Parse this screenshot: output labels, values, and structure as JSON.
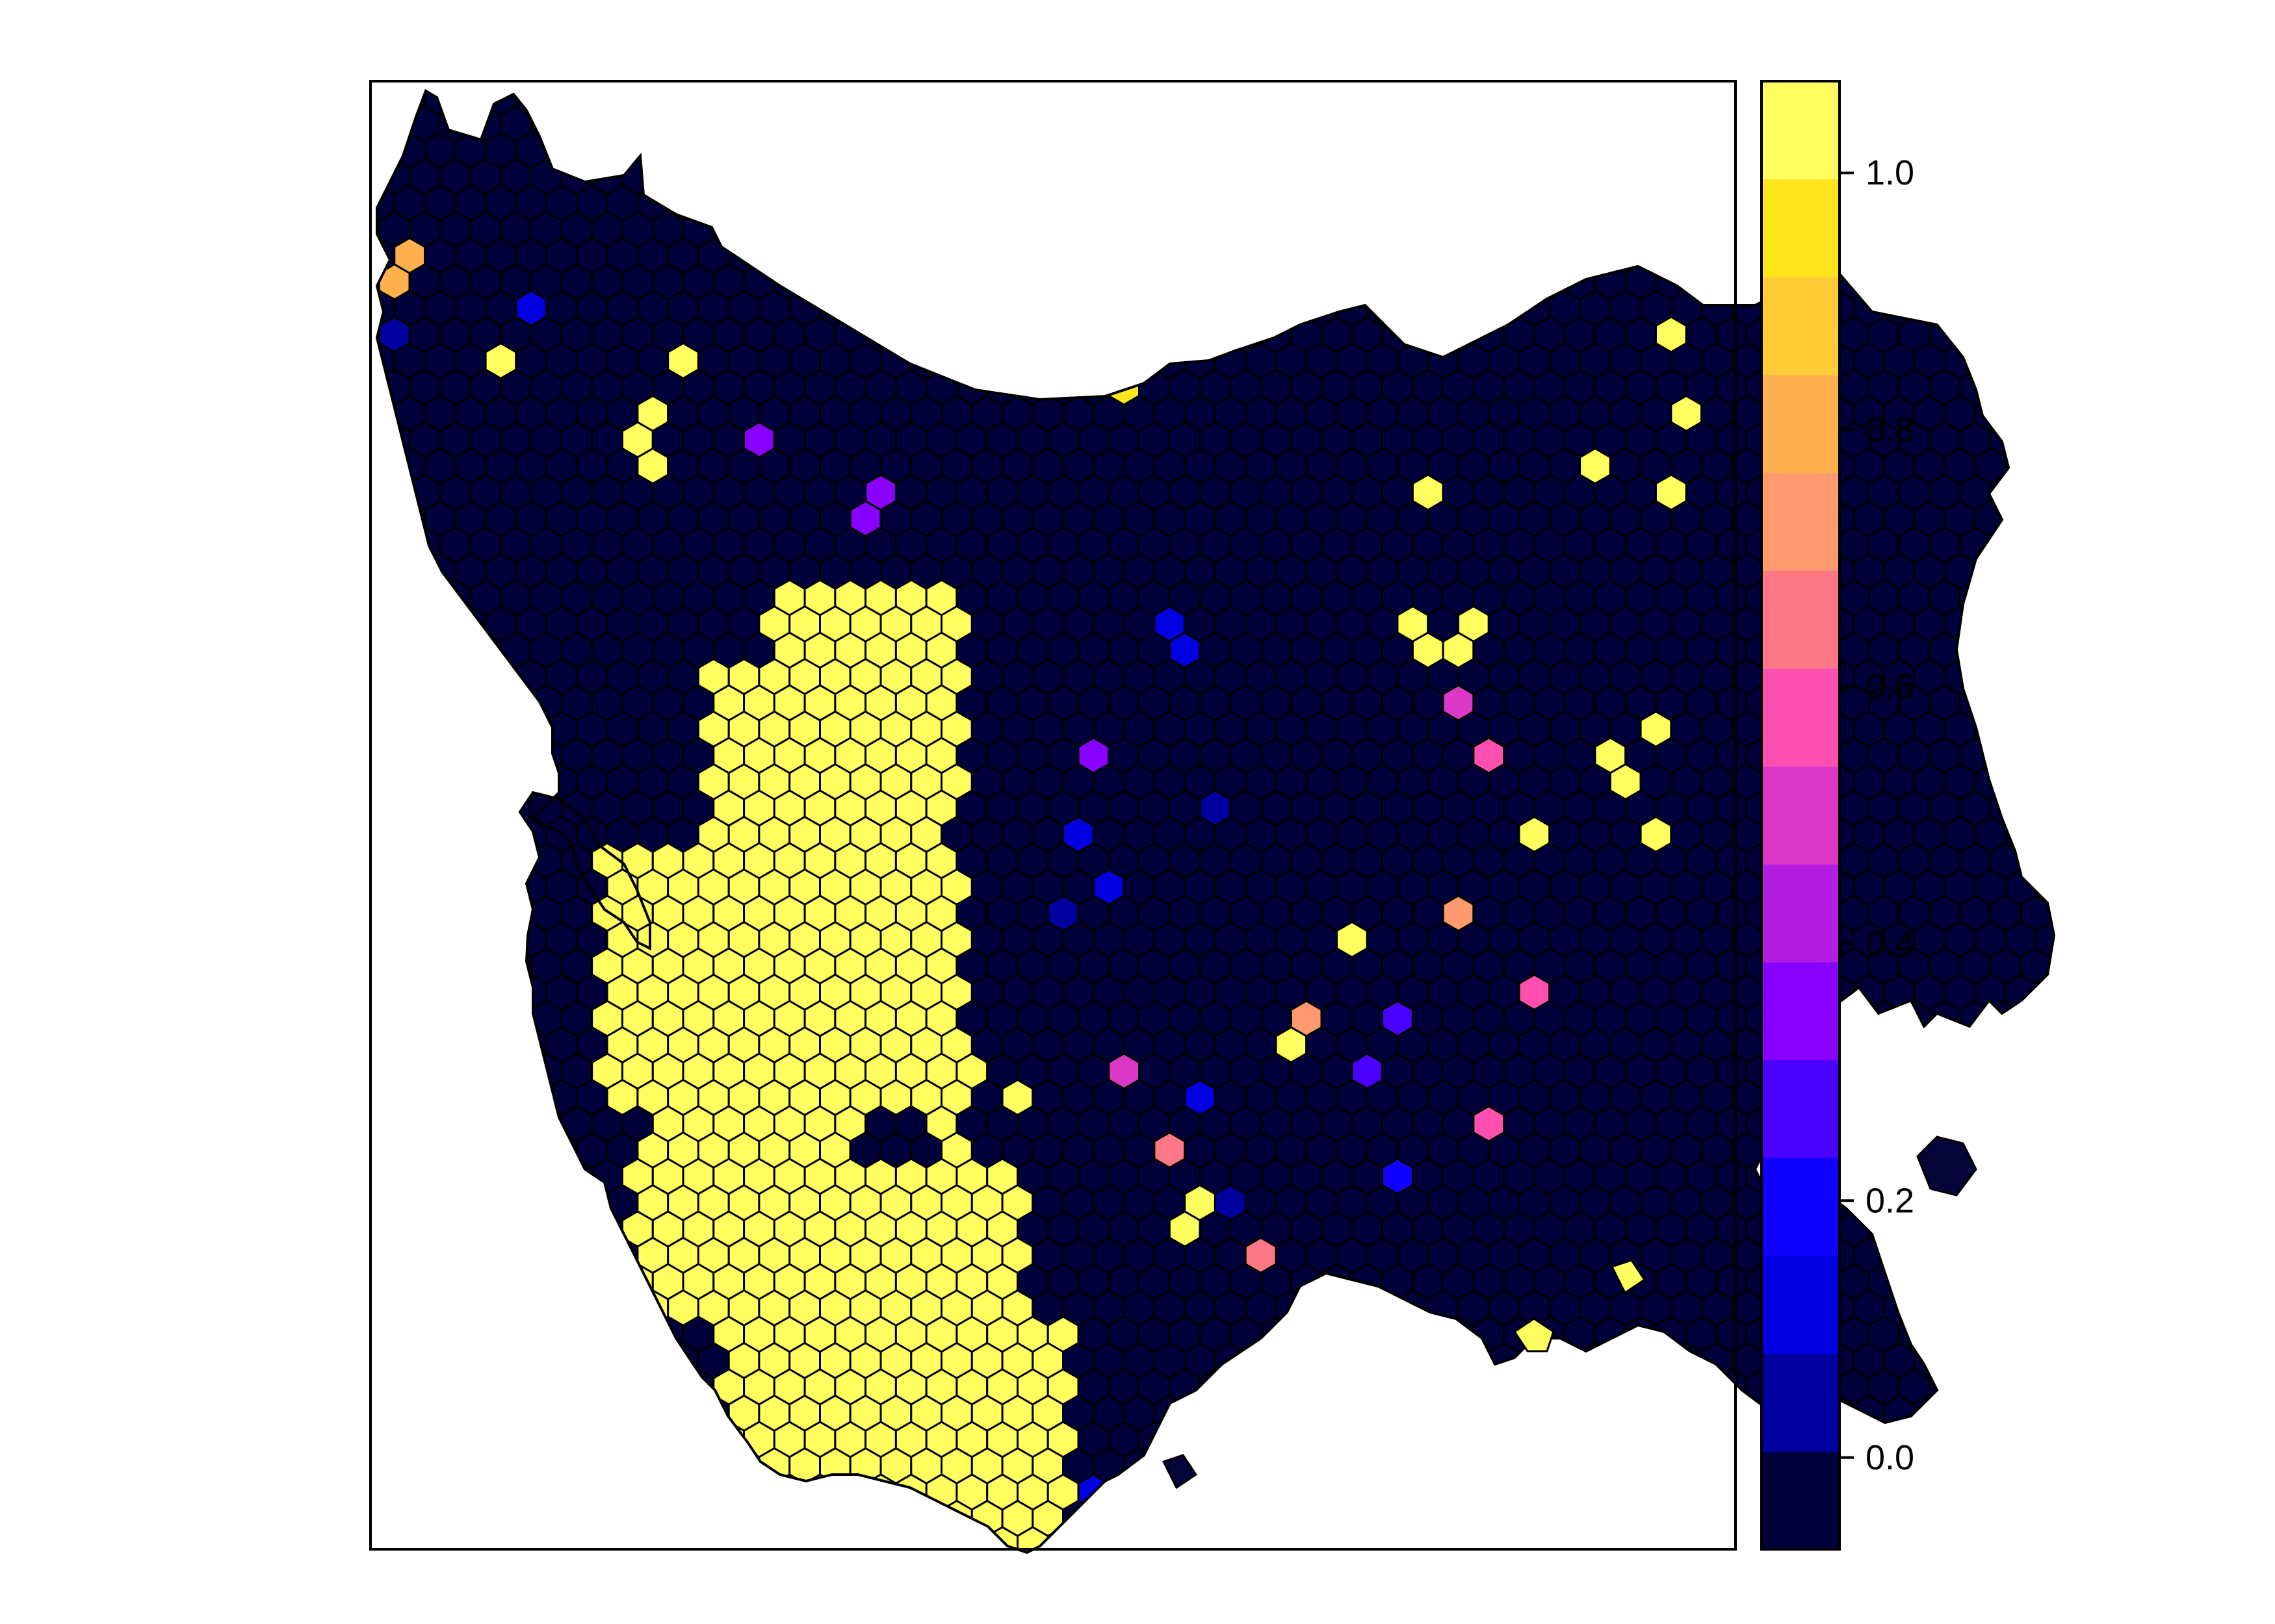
{
  "map": {
    "land_color": "#05053a",
    "outline_color": "#000000",
    "frame_color": "#000000"
  },
  "hex_grid": {
    "fill_rule": "value-to-colorbar",
    "sea_color": "#ffffff"
  },
  "colorbar": {
    "range": [
      -0.0714,
      1.0714
    ],
    "bins": [
      "#00003a",
      "#0000a0",
      "#0000e0",
      "#0f00ff",
      "#4a00ff",
      "#8800ff",
      "#b41ee0",
      "#dc38c8",
      "#ff4fb0",
      "#ff7888",
      "#ff9970",
      "#ffb04e",
      "#ffcc38",
      "#ffe61c",
      "#ffff60"
    ],
    "ticks": [
      {
        "value": 0.0,
        "label": "0.0"
      },
      {
        "value": 0.2,
        "label": "0.2"
      },
      {
        "value": 0.4,
        "label": "0.4"
      },
      {
        "value": 0.6,
        "label": "0.6"
      },
      {
        "value": 0.8,
        "label": "0.8"
      },
      {
        "value": 1.0,
        "label": "1.0"
      }
    ]
  }
}
